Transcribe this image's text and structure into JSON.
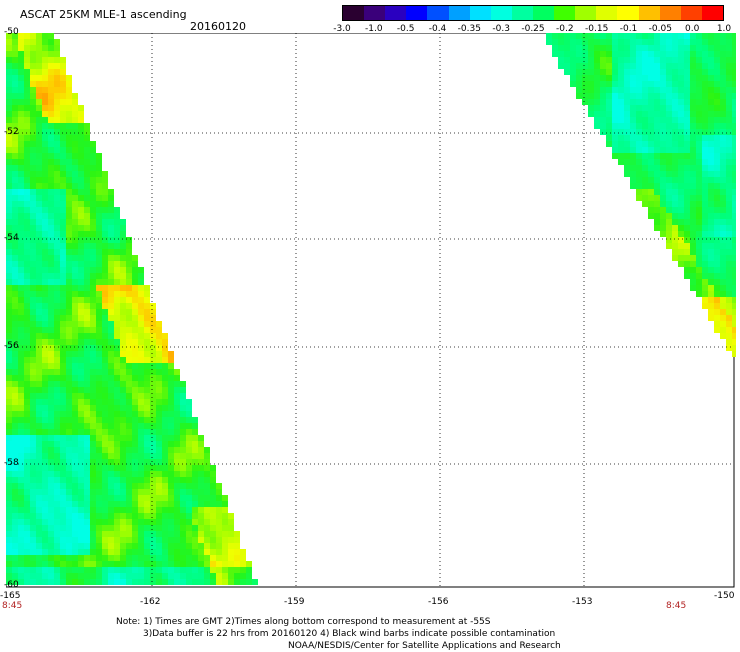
{
  "header": {
    "title": "ASCAT 25KM MLE-1 ascending",
    "date": "20160120"
  },
  "colorbar": {
    "colors": [
      "#2a0030",
      "#3a007a",
      "#2a00c0",
      "#0000ff",
      "#0050ff",
      "#00a0ff",
      "#00e0ff",
      "#00ffe0",
      "#00ffa0",
      "#00ff60",
      "#40ff00",
      "#a0ff00",
      "#e0ff00",
      "#ffff00",
      "#ffc000",
      "#ff8000",
      "#ff4000",
      "#ff0000"
    ],
    "labels": [
      "-3.0",
      "-1.0",
      "-0.5",
      "-0.4",
      "-0.35",
      "-0.3",
      "-0.25",
      "-0.2",
      "-0.15",
      "-0.1",
      "-0.05",
      "0.0",
      "1.0"
    ]
  },
  "axes": {
    "lat_labels": [
      "-50",
      "-52",
      "-54",
      "-56",
      "-58",
      "-60"
    ],
    "lon_labels": [
      "-165",
      "-162",
      "-159",
      "-156",
      "-153",
      "-150"
    ],
    "lon_range": [
      -165,
      -150
    ],
    "lat_range": [
      -50,
      -60
    ],
    "grid": "dotted"
  },
  "swath_times": {
    "left": "8:45",
    "right": "8:45"
  },
  "notes": {
    "line1": "Note: 1) Times are GMT 2)Times along bottom correspond to measurement at -55S",
    "line2": "3)Data buffer is 22 hrs from 20160120 4) Black wind barbs indicate possible contamination",
    "line3": "NOAA/NESDIS/Center for Satellite Applications and Research"
  }
}
